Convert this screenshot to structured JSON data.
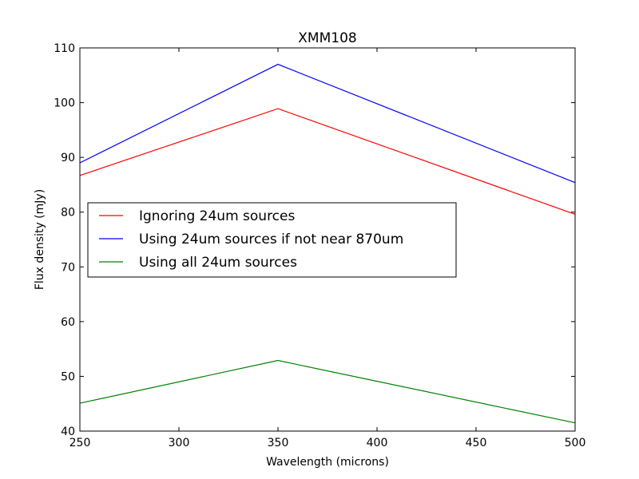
{
  "chart_data": {
    "type": "line",
    "title": "XMM108",
    "xlabel": "Wavelength (microns)",
    "ylabel": "Flux density (mJy)",
    "xlim": [
      250,
      500
    ],
    "ylim": [
      40,
      110
    ],
    "xticks": [
      250,
      300,
      350,
      400,
      450,
      500
    ],
    "yticks": [
      40,
      50,
      60,
      70,
      80,
      90,
      100,
      110
    ],
    "grid": false,
    "legend_position": "center-left",
    "x": [
      250,
      350,
      500
    ],
    "series": [
      {
        "name": "Ignoring 24um sources",
        "color": "#ff0000",
        "values": [
          86.7,
          98.9,
          79.6
        ]
      },
      {
        "name": "Using 24um sources if not near 870um",
        "color": "#0000ff",
        "values": [
          89.0,
          107.0,
          85.4
        ]
      },
      {
        "name": "Using all 24um sources",
        "color": "#008000",
        "values": [
          45.1,
          52.9,
          41.5
        ]
      }
    ]
  }
}
